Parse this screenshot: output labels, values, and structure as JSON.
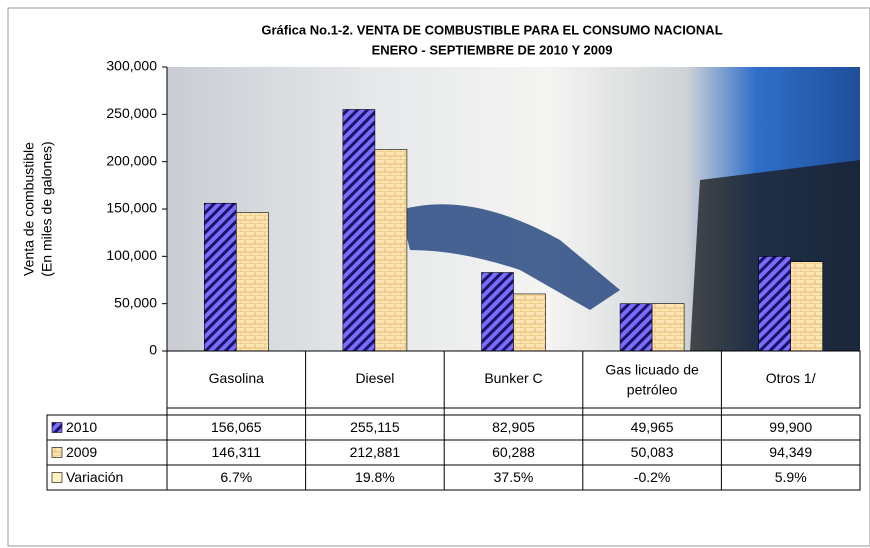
{
  "chart_data": {
    "type": "bar",
    "title": [
      "Gráfica No.1-2.  VENTA DE COMBUSTIBLE PARA EL CONSUMO NACIONAL",
      "ENERO - SEPTIEMBRE DE 2010 Y 2009"
    ],
    "y_label": [
      "Venta de combustible",
      "(En miles de galones)"
    ],
    "categories": [
      "Gasolina",
      "Diesel",
      "Bunker C",
      "Gas licuado de petróleo",
      "Otros 1/"
    ],
    "series": [
      {
        "name": "2010",
        "color": "#6a5cff",
        "values": [
          156065,
          255115,
          82905,
          49965,
          99900
        ],
        "value_labels": [
          "156,065",
          "255,115",
          "82,905",
          "49,965",
          "99,900"
        ]
      },
      {
        "name": "2009",
        "color": "#fde0a8",
        "values": [
          146311,
          212881,
          60288,
          50083,
          94349
        ],
        "value_labels": [
          "146,311",
          "212,881",
          "60,288",
          "50,083",
          "94,349"
        ]
      }
    ],
    "variation": {
      "name": "Variación",
      "color": "#fff2c0",
      "values": [
        6.7,
        19.8,
        37.5,
        -0.2,
        5.9
      ],
      "value_labels": [
        "6.7%",
        "19.8%",
        "37.5%",
        "-0.2%",
        "5.9%"
      ]
    },
    "ylim": [
      0,
      300000
    ],
    "yticks": [
      {
        "value": 0,
        "label": "0"
      },
      {
        "value": 50000,
        "label": "50,000"
      },
      {
        "value": 100000,
        "label": "100,000"
      },
      {
        "value": 150000,
        "label": "150,000"
      },
      {
        "value": 200000,
        "label": "200,000"
      },
      {
        "value": 250000,
        "label": "250,000"
      },
      {
        "value": 300000,
        "label": "300,000"
      }
    ]
  }
}
